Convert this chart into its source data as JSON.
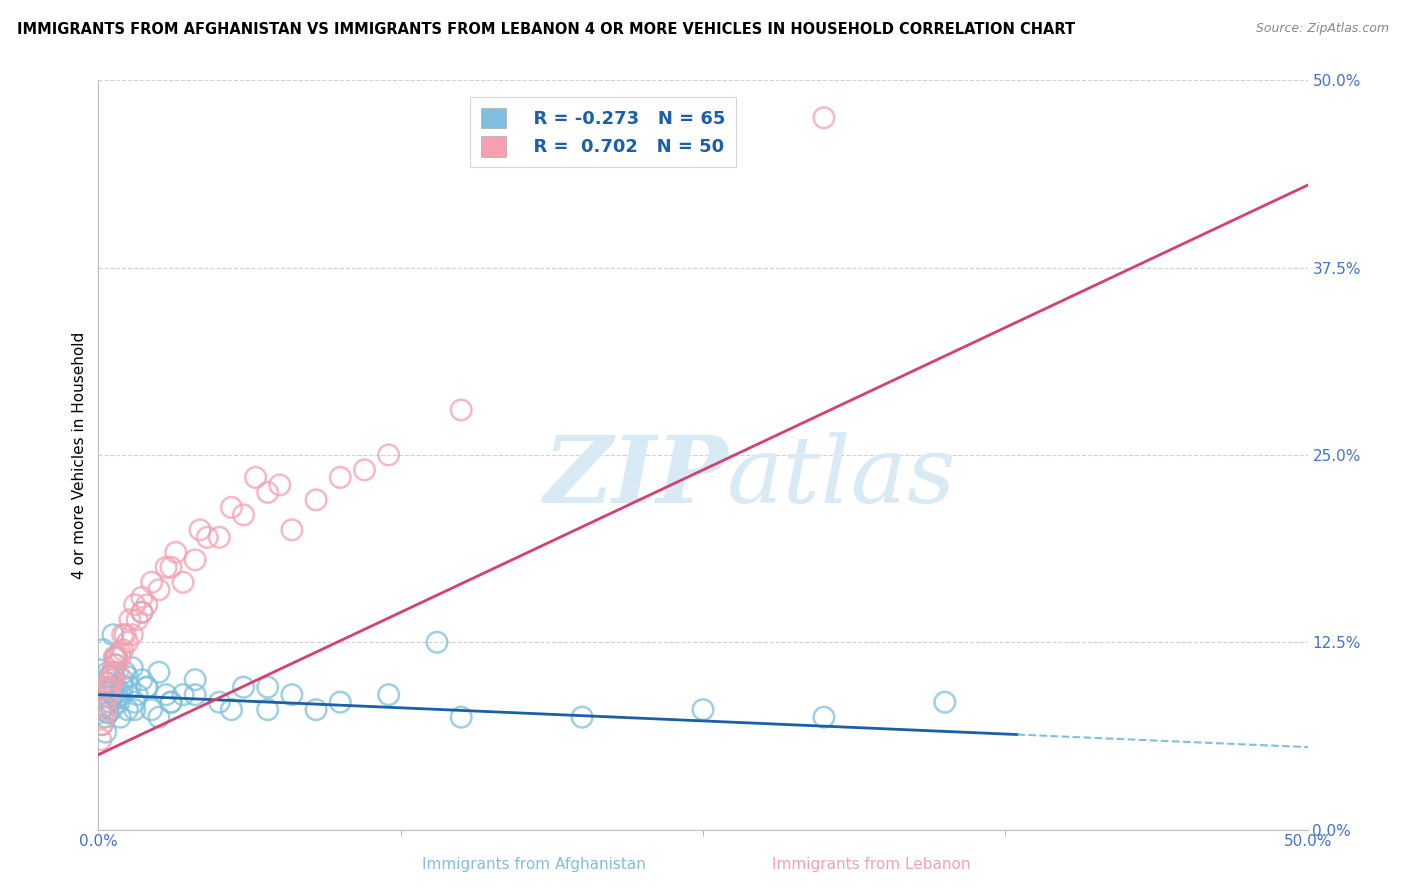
{
  "title": "IMMIGRANTS FROM AFGHANISTAN VS IMMIGRANTS FROM LEBANON 4 OR MORE VEHICLES IN HOUSEHOLD CORRELATION CHART",
  "source": "Source: ZipAtlas.com",
  "ylabel": "4 or more Vehicles in Household",
  "xmin": 0.0,
  "xmax": 50.0,
  "ymin": 0.0,
  "ymax": 50.0,
  "ytick_values": [
    0.0,
    12.5,
    25.0,
    37.5,
    50.0
  ],
  "legend_blue_r": "-0.273",
  "legend_blue_n": "65",
  "legend_pink_r": "0.702",
  "legend_pink_n": "50",
  "blue_scatter_color": "#7fbfdd",
  "pink_scatter_color": "#f4a0b0",
  "blue_line_color": "#1a5fa8",
  "pink_line_color": "#d44070",
  "watermark_color": "#d8eaf5",
  "title_fontsize": 11.5,
  "tick_color": "#4472c4",
  "grid_color": "#d0d0d0",
  "afg_x": [
    0.1,
    0.2,
    0.3,
    0.4,
    0.5,
    0.6,
    0.7,
    0.8,
    0.9,
    1.0,
    0.15,
    0.25,
    0.35,
    0.45,
    0.55,
    0.65,
    0.75,
    0.85,
    0.95,
    1.1,
    1.2,
    1.3,
    1.4,
    1.5,
    1.6,
    1.8,
    2.0,
    2.2,
    2.5,
    2.8,
    3.0,
    3.5,
    4.0,
    5.0,
    6.0,
    7.0,
    8.0,
    10.0,
    12.0,
    15.0,
    0.3,
    0.4,
    0.5,
    0.6,
    0.7,
    0.8,
    1.0,
    1.2,
    1.5,
    2.0,
    2.5,
    3.0,
    4.0,
    5.5,
    7.0,
    9.0,
    20.0,
    25.0,
    30.0,
    35.0,
    0.2,
    0.6,
    1.8,
    0.9,
    14.0
  ],
  "afg_y": [
    8.0,
    9.5,
    7.5,
    10.5,
    8.5,
    9.0,
    11.0,
    8.8,
    9.2,
    10.0,
    7.0,
    8.2,
    9.8,
    10.2,
    8.0,
    9.5,
    11.5,
    8.5,
    9.0,
    10.5,
    8.0,
    9.5,
    10.8,
    8.5,
    9.0,
    10.0,
    9.5,
    8.0,
    10.5,
    9.0,
    8.5,
    9.0,
    10.0,
    8.5,
    9.5,
    8.0,
    9.0,
    8.5,
    9.0,
    7.5,
    6.5,
    7.8,
    9.2,
    10.5,
    11.5,
    8.8,
    9.5,
    10.2,
    8.0,
    9.5,
    7.5,
    8.5,
    9.0,
    8.0,
    9.5,
    8.0,
    7.5,
    8.0,
    7.5,
    8.5,
    12.0,
    13.0,
    14.5,
    7.5,
    12.5
  ],
  "leb_x": [
    0.1,
    0.2,
    0.3,
    0.4,
    0.5,
    0.6,
    0.7,
    0.8,
    0.9,
    1.0,
    1.2,
    1.4,
    1.6,
    1.8,
    2.0,
    2.5,
    3.0,
    3.5,
    4.0,
    5.0,
    6.0,
    7.0,
    8.0,
    9.0,
    10.0,
    11.0,
    0.15,
    0.25,
    0.45,
    0.65,
    1.1,
    1.3,
    1.5,
    2.2,
    3.2,
    4.5,
    5.5,
    7.5,
    12.0,
    15.0,
    0.35,
    0.55,
    0.75,
    1.0,
    1.8,
    2.8,
    4.2,
    6.5,
    30.0,
    0.9
  ],
  "leb_y": [
    6.0,
    7.5,
    8.0,
    9.0,
    9.5,
    10.0,
    11.0,
    10.5,
    11.5,
    12.0,
    12.5,
    13.0,
    14.0,
    14.5,
    15.0,
    16.0,
    17.5,
    16.5,
    18.0,
    19.5,
    21.0,
    22.5,
    20.0,
    22.0,
    23.5,
    24.0,
    7.0,
    8.5,
    10.0,
    11.5,
    13.0,
    14.0,
    15.0,
    16.5,
    18.5,
    19.5,
    21.5,
    23.0,
    25.0,
    28.0,
    9.5,
    10.5,
    11.5,
    13.0,
    15.5,
    17.5,
    20.0,
    23.5,
    47.5,
    11.8
  ]
}
